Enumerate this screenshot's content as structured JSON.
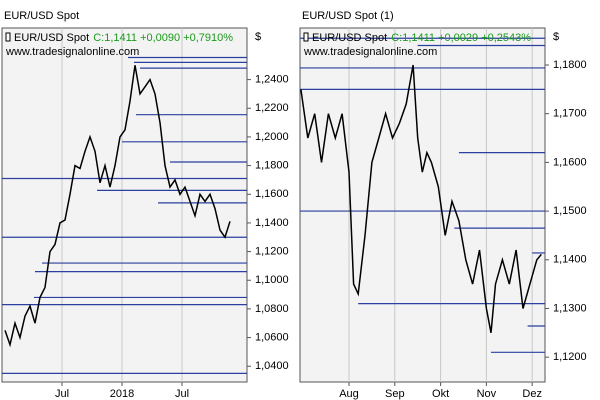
{
  "chart_data": [
    {
      "type": "line",
      "title": "EUR/USD Spot",
      "legend_name": "EUR/USD Spot",
      "quote": "C:1,1411 +0,0090 +0,7910%",
      "watermark": "www.tradesignalonline.com",
      "unit": "$",
      "color": "#000000",
      "level_color": "#2a3f9f",
      "quote_color": "#1a9a1a",
      "xlim": [
        0,
        24.5
      ],
      "ylim": [
        1.029,
        1.276
      ],
      "xticks": [
        {
          "value": 6,
          "label": "Jul"
        },
        {
          "value": 12,
          "label": "2018"
        },
        {
          "value": 18,
          "label": "Jul"
        }
      ],
      "yticks": [
        {
          "value": 1.04,
          "label": "1,0400"
        },
        {
          "value": 1.06,
          "label": "1,0600"
        },
        {
          "value": 1.08,
          "label": "1,0800"
        },
        {
          "value": 1.1,
          "label": "1,1000"
        },
        {
          "value": 1.12,
          "label": "1,1200"
        },
        {
          "value": 1.14,
          "label": "1,1400"
        },
        {
          "value": 1.16,
          "label": "1,1600"
        },
        {
          "value": 1.18,
          "label": "1,1800"
        },
        {
          "value": 1.2,
          "label": "1,2000"
        },
        {
          "value": 1.22,
          "label": "1,2200"
        },
        {
          "value": 1.24,
          "label": "1,2400"
        }
      ],
      "x": [
        0.3,
        0.8,
        1.3,
        1.8,
        2.3,
        2.8,
        3.3,
        3.8,
        4.3,
        4.8,
        5.3,
        5.8,
        6.3,
        6.8,
        7.3,
        7.8,
        8.3,
        8.8,
        9.3,
        9.8,
        10.3,
        10.8,
        11.3,
        11.8,
        12.3,
        12.8,
        13.3,
        13.8,
        14.3,
        14.8,
        15.3,
        15.8,
        16.3,
        16.8,
        17.3,
        17.8,
        18.3,
        18.8,
        19.3,
        19.8,
        20.3,
        20.8,
        21.3,
        21.8,
        22.3,
        22.8
      ],
      "values": [
        1.065,
        1.055,
        1.07,
        1.06,
        1.075,
        1.082,
        1.07,
        1.088,
        1.095,
        1.12,
        1.125,
        1.14,
        1.142,
        1.16,
        1.18,
        1.178,
        1.19,
        1.2,
        1.19,
        1.168,
        1.18,
        1.165,
        1.18,
        1.2,
        1.205,
        1.225,
        1.25,
        1.23,
        1.235,
        1.24,
        1.23,
        1.21,
        1.18,
        1.165,
        1.17,
        1.16,
        1.165,
        1.155,
        1.145,
        1.16,
        1.155,
        1.16,
        1.15,
        1.135,
        1.13,
        1.1411
      ],
      "levels": [
        {
          "value": 1.2554,
          "from": 12.6
        },
        {
          "value": 1.252,
          "from": 13.2
        },
        {
          "value": 1.248,
          "from": 13.8
        },
        {
          "value": 1.2155,
          "from": 13.4
        },
        {
          "value": 1.1966,
          "from": 12.0
        },
        {
          "value": 1.1825,
          "from": 16.8
        },
        {
          "value": 1.171,
          "from": 0.0
        },
        {
          "value": 1.1627,
          "from": 9.5
        },
        {
          "value": 1.154,
          "from": 15.6
        },
        {
          "value": 1.13,
          "from": 0.0
        },
        {
          "value": 1.112,
          "from": 4.0
        },
        {
          "value": 1.106,
          "from": 3.3
        },
        {
          "value": 1.088,
          "from": 3.2
        },
        {
          "value": 1.083,
          "from": 0.0
        },
        {
          "value": 1.035,
          "from": 0.0
        }
      ]
    },
    {
      "type": "line",
      "title": "EUR/USD Spot (1)",
      "legend_name": "EUR/USD Spot",
      "quote": "C:1,1411 +0,0029 +0,2543%",
      "watermark": "www.tradesignalonline.com",
      "unit": "$",
      "color": "#000000",
      "level_color": "#2a3f9f",
      "quote_color": "#1a9a1a",
      "xlim": [
        6.93,
        12.28
      ],
      "ylim": [
        1.1149,
        1.1876
      ],
      "xticks": [
        {
          "value": 8,
          "label": "Aug"
        },
        {
          "value": 9,
          "label": "Sep"
        },
        {
          "value": 10,
          "label": "Okt"
        },
        {
          "value": 11,
          "label": "Nov"
        },
        {
          "value": 12,
          "label": "Dez"
        }
      ],
      "yticks": [
        {
          "value": 1.12,
          "label": "1,1200"
        },
        {
          "value": 1.13,
          "label": "1,1300"
        },
        {
          "value": 1.14,
          "label": "1,1400"
        },
        {
          "value": 1.15,
          "label": "1,1500"
        },
        {
          "value": 1.16,
          "label": "1,1600"
        },
        {
          "value": 1.17,
          "label": "1,1700"
        },
        {
          "value": 1.18,
          "label": "1,1800"
        }
      ],
      "x": [
        6.95,
        7.1,
        7.25,
        7.4,
        7.55,
        7.7,
        7.85,
        8.0,
        8.1,
        8.2,
        8.35,
        8.5,
        8.65,
        8.8,
        8.95,
        9.1,
        9.25,
        9.4,
        9.5,
        9.6,
        9.7,
        9.8,
        9.95,
        10.1,
        10.25,
        10.4,
        10.55,
        10.7,
        10.85,
        11.0,
        11.1,
        11.2,
        11.35,
        11.5,
        11.65,
        11.8,
        11.95,
        12.1,
        12.2
      ],
      "values": [
        1.175,
        1.165,
        1.17,
        1.16,
        1.17,
        1.165,
        1.17,
        1.158,
        1.135,
        1.133,
        1.145,
        1.16,
        1.165,
        1.17,
        1.165,
        1.168,
        1.172,
        1.18,
        1.165,
        1.158,
        1.162,
        1.16,
        1.155,
        1.145,
        1.152,
        1.148,
        1.14,
        1.135,
        1.142,
        1.13,
        1.125,
        1.135,
        1.14,
        1.135,
        1.142,
        1.13,
        1.135,
        1.14,
        1.1411
      ],
      "levels": [
        {
          "value": 1.1855,
          "from": 6.93
        },
        {
          "value": 1.184,
          "from": 9.5
        },
        {
          "value": 1.1794,
          "from": 6.93
        },
        {
          "value": 1.175,
          "from": 6.93
        },
        {
          "value": 1.162,
          "from": 10.4
        },
        {
          "value": 1.15,
          "from": 6.93
        },
        {
          "value": 1.1465,
          "from": 10.3
        },
        {
          "value": 1.1414,
          "from": 12.0
        },
        {
          "value": 1.131,
          "from": 8.2
        },
        {
          "value": 1.1264,
          "from": 11.9
        },
        {
          "value": 1.121,
          "from": 11.1
        }
      ]
    }
  ]
}
